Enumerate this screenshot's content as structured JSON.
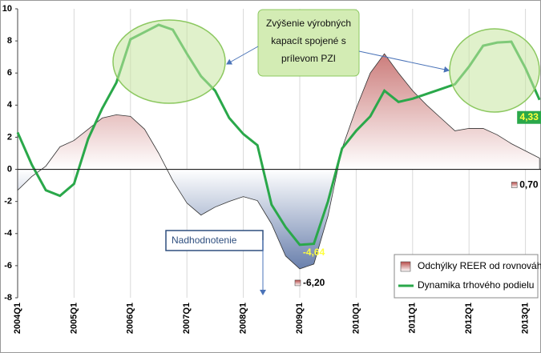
{
  "chart_data": {
    "type": "line",
    "categories": [
      "2004Q1",
      null,
      null,
      null,
      "2005Q1",
      null,
      null,
      null,
      "2006Q1",
      null,
      null,
      null,
      "2007Q1",
      null,
      null,
      null,
      "2008Q1",
      null,
      null,
      null,
      "2009Q1",
      null,
      null,
      null,
      "2010Q1",
      null,
      null,
      null,
      "2011Q1",
      null,
      null,
      null,
      "2012Q1",
      null,
      null,
      null,
      "2013Q1",
      null
    ],
    "series": [
      {
        "name": "Odchýlky REER od rovnováhy",
        "kind": "area",
        "color": "#b84a48",
        "negative_color": "#3d5a94",
        "values": [
          -1.3,
          -0.45,
          0.2,
          1.4,
          1.8,
          2.5,
          3.2,
          3.4,
          3.3,
          2.5,
          1.0,
          -0.7,
          -2.1,
          -2.85,
          -2.35,
          -2.0,
          -1.7,
          -1.95,
          -3.4,
          -5.4,
          -6.2,
          -5.9,
          -2.9,
          1.3,
          3.8,
          6.0,
          7.2,
          6.0,
          4.9,
          4.0,
          3.2,
          2.4,
          2.55,
          2.55,
          2.15,
          1.6,
          1.15,
          0.7
        ],
        "value_labels": [
          null,
          null,
          null,
          null,
          null,
          null,
          null,
          null,
          null,
          null,
          null,
          null,
          null,
          null,
          null,
          null,
          null,
          null,
          null,
          null,
          "-6,20",
          null,
          null,
          null,
          null,
          null,
          null,
          null,
          null,
          null,
          null,
          null,
          null,
          null,
          null,
          null,
          null,
          "0,70"
        ]
      },
      {
        "name": "Dynamika trhového podielu",
        "kind": "line",
        "color": "#2aa84a",
        "values": [
          2.3,
          0.3,
          -1.3,
          -1.65,
          -0.9,
          1.9,
          3.8,
          5.4,
          8.1,
          8.55,
          9.0,
          8.7,
          7.2,
          5.8,
          4.9,
          3.2,
          2.2,
          1.5,
          -2.2,
          -3.6,
          -4.7,
          -4.64,
          -2.0,
          1.3,
          2.4,
          3.3,
          4.9,
          4.2,
          4.4,
          4.7,
          5.0,
          5.3,
          6.4,
          7.7,
          7.9,
          7.95,
          6.3,
          4.33
        ],
        "value_labels": [
          null,
          null,
          null,
          null,
          null,
          null,
          null,
          null,
          null,
          null,
          null,
          null,
          null,
          null,
          null,
          null,
          null,
          null,
          null,
          null,
          null,
          "-4,64",
          null,
          null,
          null,
          null,
          null,
          null,
          null,
          null,
          null,
          null,
          null,
          null,
          null,
          null,
          null,
          "4,33"
        ]
      }
    ],
    "ylim": [
      -8,
      10
    ],
    "yticks": [
      -8,
      -6,
      -4,
      -2,
      0,
      2,
      4,
      6,
      8,
      10
    ],
    "annotations": {
      "capacity": [
        "Zvýšenie výrobných",
        "kapacít spojené s",
        "prílevom PZI"
      ],
      "overvaluation": "Nadhodnotenie"
    },
    "legend": "bottom-right"
  }
}
